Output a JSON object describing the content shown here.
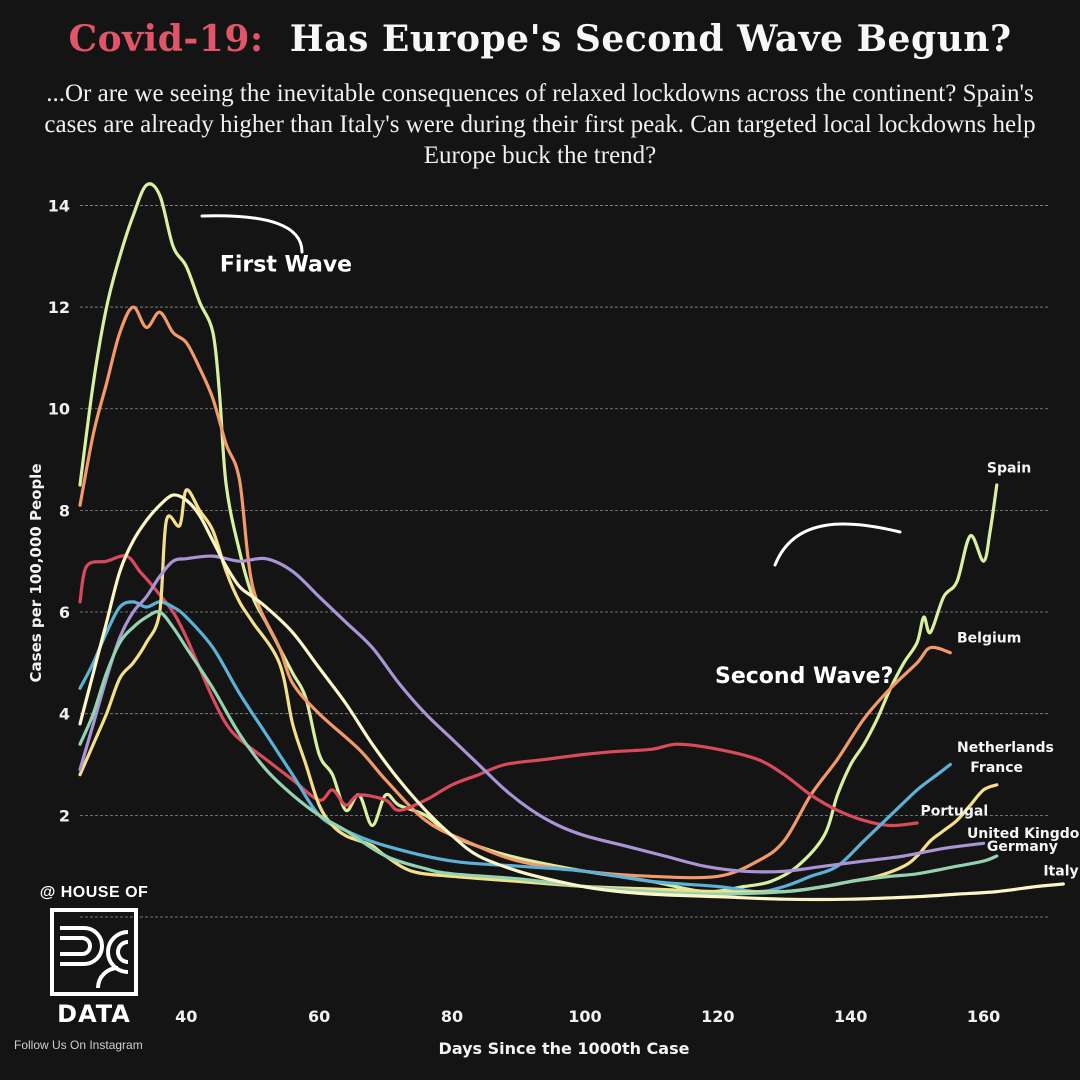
{
  "title": {
    "accent": "Covid-19:",
    "main": "Has Europe's Second Wave Begun?"
  },
  "subtitle": "...Or are we seeing the inevitable consequences of relaxed lockdowns across the continent? Spain's cases are already higher than Italy's were during their first peak. Can targeted local lockdowns help Europe buck the trend?",
  "branding": {
    "top": "@ HOUSE OF",
    "bottom": "DATA",
    "follow": "Follow Us On Instagram"
  },
  "chart_data": {
    "type": "line",
    "xlabel": "Days Since the 1000th Case",
    "ylabel": "Cases per 100,000 People",
    "xlim": [
      24,
      170
    ],
    "ylim": [
      0,
      14.5
    ],
    "x_ticks": [
      40,
      60,
      80,
      100,
      120,
      140,
      160
    ],
    "y_ticks": [
      2,
      4,
      6,
      8,
      10,
      12,
      14
    ],
    "grid": "horizontal",
    "annotations": [
      {
        "text": "First Wave",
        "x": 55,
        "y": 12.7
      },
      {
        "text": "Second Wave?",
        "x": 133,
        "y": 4.6
      }
    ],
    "series": [
      {
        "name": "Spain",
        "color": "#d8f0a0",
        "points": [
          [
            24,
            8.5
          ],
          [
            26,
            10.5
          ],
          [
            28,
            12
          ],
          [
            30,
            13
          ],
          [
            32,
            13.8
          ],
          [
            34,
            14.4
          ],
          [
            36,
            14.2
          ],
          [
            38,
            13.2
          ],
          [
            40,
            12.8
          ],
          [
            42,
            12.1
          ],
          [
            44,
            11.5
          ],
          [
            45,
            10.3
          ],
          [
            46,
            8.5
          ],
          [
            48,
            7.2
          ],
          [
            50,
            6.3
          ],
          [
            52,
            5.8
          ],
          [
            54,
            5.3
          ],
          [
            56,
            4.8
          ],
          [
            58,
            4.3
          ],
          [
            60,
            3.2
          ],
          [
            62,
            2.8
          ],
          [
            64,
            2.1
          ],
          [
            66,
            2.4
          ],
          [
            68,
            1.8
          ],
          [
            70,
            2.4
          ],
          [
            72,
            2.2
          ],
          [
            76,
            2.0
          ],
          [
            80,
            1.6
          ],
          [
            86,
            1.3
          ],
          [
            92,
            1.1
          ],
          [
            100,
            0.9
          ],
          [
            110,
            0.7
          ],
          [
            118,
            0.5
          ],
          [
            124,
            0.6
          ],
          [
            128,
            0.7
          ],
          [
            132,
            1.0
          ],
          [
            136,
            1.6
          ],
          [
            138,
            2.4
          ],
          [
            140,
            3.0
          ],
          [
            142,
            3.4
          ],
          [
            144,
            3.9
          ],
          [
            146,
            4.5
          ],
          [
            148,
            5.0
          ],
          [
            150,
            5.4
          ],
          [
            151,
            5.9
          ],
          [
            152,
            5.6
          ],
          [
            154,
            6.3
          ],
          [
            156,
            6.6
          ],
          [
            158,
            7.5
          ],
          [
            160,
            7.0
          ],
          [
            161,
            7.6
          ],
          [
            162,
            8.5
          ]
        ]
      },
      {
        "name": "Belgium",
        "color": "#f29a6a",
        "points": [
          [
            24,
            8.1
          ],
          [
            26,
            9.5
          ],
          [
            28,
            10.5
          ],
          [
            30,
            11.5
          ],
          [
            32,
            12.0
          ],
          [
            34,
            11.6
          ],
          [
            36,
            11.9
          ],
          [
            38,
            11.5
          ],
          [
            40,
            11.3
          ],
          [
            42,
            10.8
          ],
          [
            44,
            10.2
          ],
          [
            46,
            9.3
          ],
          [
            48,
            8.6
          ],
          [
            50,
            6.5
          ],
          [
            54,
            5.3
          ],
          [
            56,
            4.6
          ],
          [
            60,
            4.0
          ],
          [
            66,
            3.3
          ],
          [
            70,
            2.7
          ],
          [
            76,
            1.9
          ],
          [
            82,
            1.5
          ],
          [
            90,
            1.1
          ],
          [
            100,
            0.9
          ],
          [
            110,
            0.8
          ],
          [
            120,
            0.8
          ],
          [
            126,
            1.1
          ],
          [
            130,
            1.5
          ],
          [
            134,
            2.4
          ],
          [
            138,
            3.1
          ],
          [
            142,
            3.9
          ],
          [
            146,
            4.5
          ],
          [
            150,
            5.0
          ],
          [
            152,
            5.3
          ],
          [
            155,
            5.2
          ]
        ]
      },
      {
        "name": "Portugal",
        "color": "#d94a5c",
        "points": [
          [
            24,
            6.2
          ],
          [
            25,
            6.9
          ],
          [
            28,
            7.0
          ],
          [
            31,
            7.1
          ],
          [
            33,
            6.8
          ],
          [
            35,
            6.5
          ],
          [
            38,
            6.0
          ],
          [
            40,
            5.5
          ],
          [
            42,
            4.9
          ],
          [
            44,
            4.3
          ],
          [
            46,
            3.8
          ],
          [
            48,
            3.5
          ],
          [
            52,
            3.1
          ],
          [
            56,
            2.7
          ],
          [
            60,
            2.3
          ],
          [
            62,
            2.5
          ],
          [
            64,
            2.2
          ],
          [
            66,
            2.4
          ],
          [
            70,
            2.3
          ],
          [
            72,
            2.1
          ],
          [
            76,
            2.3
          ],
          [
            80,
            2.6
          ],
          [
            84,
            2.8
          ],
          [
            88,
            3.0
          ],
          [
            94,
            3.1
          ],
          [
            100,
            3.2
          ],
          [
            104,
            3.25
          ],
          [
            110,
            3.3
          ],
          [
            114,
            3.4
          ],
          [
            120,
            3.3
          ],
          [
            126,
            3.1
          ],
          [
            130,
            2.8
          ],
          [
            134,
            2.4
          ],
          [
            138,
            2.1
          ],
          [
            142,
            1.9
          ],
          [
            146,
            1.8
          ],
          [
            150,
            1.85
          ]
        ]
      },
      {
        "name": "Netherlands",
        "color": "#5db0d6",
        "points": [
          [
            24,
            4.5
          ],
          [
            26,
            5.0
          ],
          [
            28,
            5.6
          ],
          [
            30,
            6.1
          ],
          [
            32,
            6.2
          ],
          [
            34,
            6.1
          ],
          [
            36,
            6.2
          ],
          [
            38,
            6.1
          ],
          [
            40,
            5.9
          ],
          [
            44,
            5.3
          ],
          [
            48,
            4.4
          ],
          [
            52,
            3.6
          ],
          [
            56,
            2.8
          ],
          [
            60,
            2.0
          ],
          [
            64,
            1.7
          ],
          [
            70,
            1.4
          ],
          [
            80,
            1.1
          ],
          [
            90,
            1.0
          ],
          [
            100,
            0.9
          ],
          [
            110,
            0.7
          ],
          [
            120,
            0.6
          ],
          [
            126,
            0.5
          ],
          [
            130,
            0.6
          ],
          [
            134,
            0.8
          ],
          [
            138,
            1.0
          ],
          [
            142,
            1.5
          ],
          [
            146,
            2.0
          ],
          [
            150,
            2.5
          ],
          [
            153,
            2.8
          ],
          [
            155,
            3.0
          ]
        ]
      },
      {
        "name": "France",
        "color": "#f5e08a",
        "points": [
          [
            24,
            2.8
          ],
          [
            26,
            3.4
          ],
          [
            28,
            4.0
          ],
          [
            30,
            4.7
          ],
          [
            32,
            5.0
          ],
          [
            34,
            5.4
          ],
          [
            36,
            6.0
          ],
          [
            37,
            7.8
          ],
          [
            39,
            7.7
          ],
          [
            40,
            8.4
          ],
          [
            42,
            8.0
          ],
          [
            44,
            7.6
          ],
          [
            46,
            6.8
          ],
          [
            48,
            6.2
          ],
          [
            50,
            5.8
          ],
          [
            54,
            5.0
          ],
          [
            56,
            3.8
          ],
          [
            58,
            3.0
          ],
          [
            60,
            2.2
          ],
          [
            62,
            1.8
          ],
          [
            64,
            1.6
          ],
          [
            66,
            1.5
          ],
          [
            68,
            1.4
          ],
          [
            70,
            1.2
          ],
          [
            74,
            0.9
          ],
          [
            80,
            0.8
          ],
          [
            90,
            0.7
          ],
          [
            100,
            0.6
          ],
          [
            110,
            0.55
          ],
          [
            120,
            0.5
          ],
          [
            130,
            0.5
          ],
          [
            136,
            0.6
          ],
          [
            140,
            0.7
          ],
          [
            144,
            0.8
          ],
          [
            148,
            1.0
          ],
          [
            150,
            1.2
          ],
          [
            152,
            1.5
          ],
          [
            154,
            1.7
          ],
          [
            156,
            1.9
          ],
          [
            158,
            2.2
          ],
          [
            160,
            2.5
          ],
          [
            162,
            2.6
          ]
        ]
      },
      {
        "name": "United Kingdom",
        "color": "#a994d4",
        "points": [
          [
            24,
            2.9
          ],
          [
            26,
            3.8
          ],
          [
            28,
            4.7
          ],
          [
            30,
            5.5
          ],
          [
            32,
            6.0
          ],
          [
            34,
            6.3
          ],
          [
            36,
            6.7
          ],
          [
            38,
            7.0
          ],
          [
            40,
            7.05
          ],
          [
            44,
            7.1
          ],
          [
            48,
            7.0
          ],
          [
            52,
            7.05
          ],
          [
            56,
            6.8
          ],
          [
            60,
            6.3
          ],
          [
            64,
            5.8
          ],
          [
            68,
            5.3
          ],
          [
            72,
            4.6
          ],
          [
            76,
            4.0
          ],
          [
            80,
            3.5
          ],
          [
            84,
            3.0
          ],
          [
            88,
            2.5
          ],
          [
            92,
            2.1
          ],
          [
            96,
            1.8
          ],
          [
            100,
            1.6
          ],
          [
            106,
            1.4
          ],
          [
            112,
            1.2
          ],
          [
            118,
            1.0
          ],
          [
            124,
            0.9
          ],
          [
            130,
            0.9
          ],
          [
            136,
            1.0
          ],
          [
            142,
            1.1
          ],
          [
            148,
            1.2
          ],
          [
            154,
            1.35
          ],
          [
            160,
            1.45
          ]
        ]
      },
      {
        "name": "Germany",
        "color": "#93d3b0",
        "points": [
          [
            24,
            3.4
          ],
          [
            26,
            4.0
          ],
          [
            28,
            4.8
          ],
          [
            30,
            5.4
          ],
          [
            32,
            5.7
          ],
          [
            34,
            5.9
          ],
          [
            36,
            6.0
          ],
          [
            38,
            5.7
          ],
          [
            40,
            5.3
          ],
          [
            44,
            4.5
          ],
          [
            48,
            3.6
          ],
          [
            52,
            2.9
          ],
          [
            56,
            2.4
          ],
          [
            60,
            2.0
          ],
          [
            64,
            1.7
          ],
          [
            70,
            1.2
          ],
          [
            76,
            0.95
          ],
          [
            80,
            0.85
          ],
          [
            90,
            0.75
          ],
          [
            100,
            0.6
          ],
          [
            110,
            0.5
          ],
          [
            120,
            0.45
          ],
          [
            130,
            0.5
          ],
          [
            136,
            0.6
          ],
          [
            140,
            0.7
          ],
          [
            146,
            0.8
          ],
          [
            150,
            0.85
          ],
          [
            156,
            1.0
          ],
          [
            160,
            1.1
          ],
          [
            162,
            1.2
          ]
        ]
      },
      {
        "name": "Italy",
        "color": "#fbf5c8",
        "points": [
          [
            24,
            3.8
          ],
          [
            26,
            4.8
          ],
          [
            28,
            5.8
          ],
          [
            30,
            6.8
          ],
          [
            32,
            7.4
          ],
          [
            34,
            7.8
          ],
          [
            36,
            8.1
          ],
          [
            38,
            8.3
          ],
          [
            40,
            8.2
          ],
          [
            42,
            7.9
          ],
          [
            44,
            7.4
          ],
          [
            46,
            6.9
          ],
          [
            48,
            6.5
          ],
          [
            50,
            6.3
          ],
          [
            52,
            6.1
          ],
          [
            56,
            5.6
          ],
          [
            60,
            4.9
          ],
          [
            64,
            4.2
          ],
          [
            68,
            3.4
          ],
          [
            72,
            2.7
          ],
          [
            76,
            2.1
          ],
          [
            80,
            1.6
          ],
          [
            84,
            1.2
          ],
          [
            90,
            0.9
          ],
          [
            96,
            0.7
          ],
          [
            102,
            0.55
          ],
          [
            110,
            0.45
          ],
          [
            120,
            0.4
          ],
          [
            130,
            0.35
          ],
          [
            140,
            0.35
          ],
          [
            150,
            0.4
          ],
          [
            156,
            0.45
          ],
          [
            162,
            0.5
          ],
          [
            168,
            0.6
          ],
          [
            172,
            0.65
          ]
        ]
      }
    ],
    "label_positions": {
      "Spain": [
        160.5,
        8.75
      ],
      "Belgium": [
        156,
        5.4
      ],
      "Netherlands": [
        156,
        3.25
      ],
      "France": [
        158,
        2.85
      ],
      "Portugal": [
        150.5,
        2.0
      ],
      "United Kingdom": [
        157.5,
        1.55
      ],
      "Germany": [
        160.5,
        1.3
      ],
      "Italy": [
        169,
        0.82
      ]
    }
  }
}
